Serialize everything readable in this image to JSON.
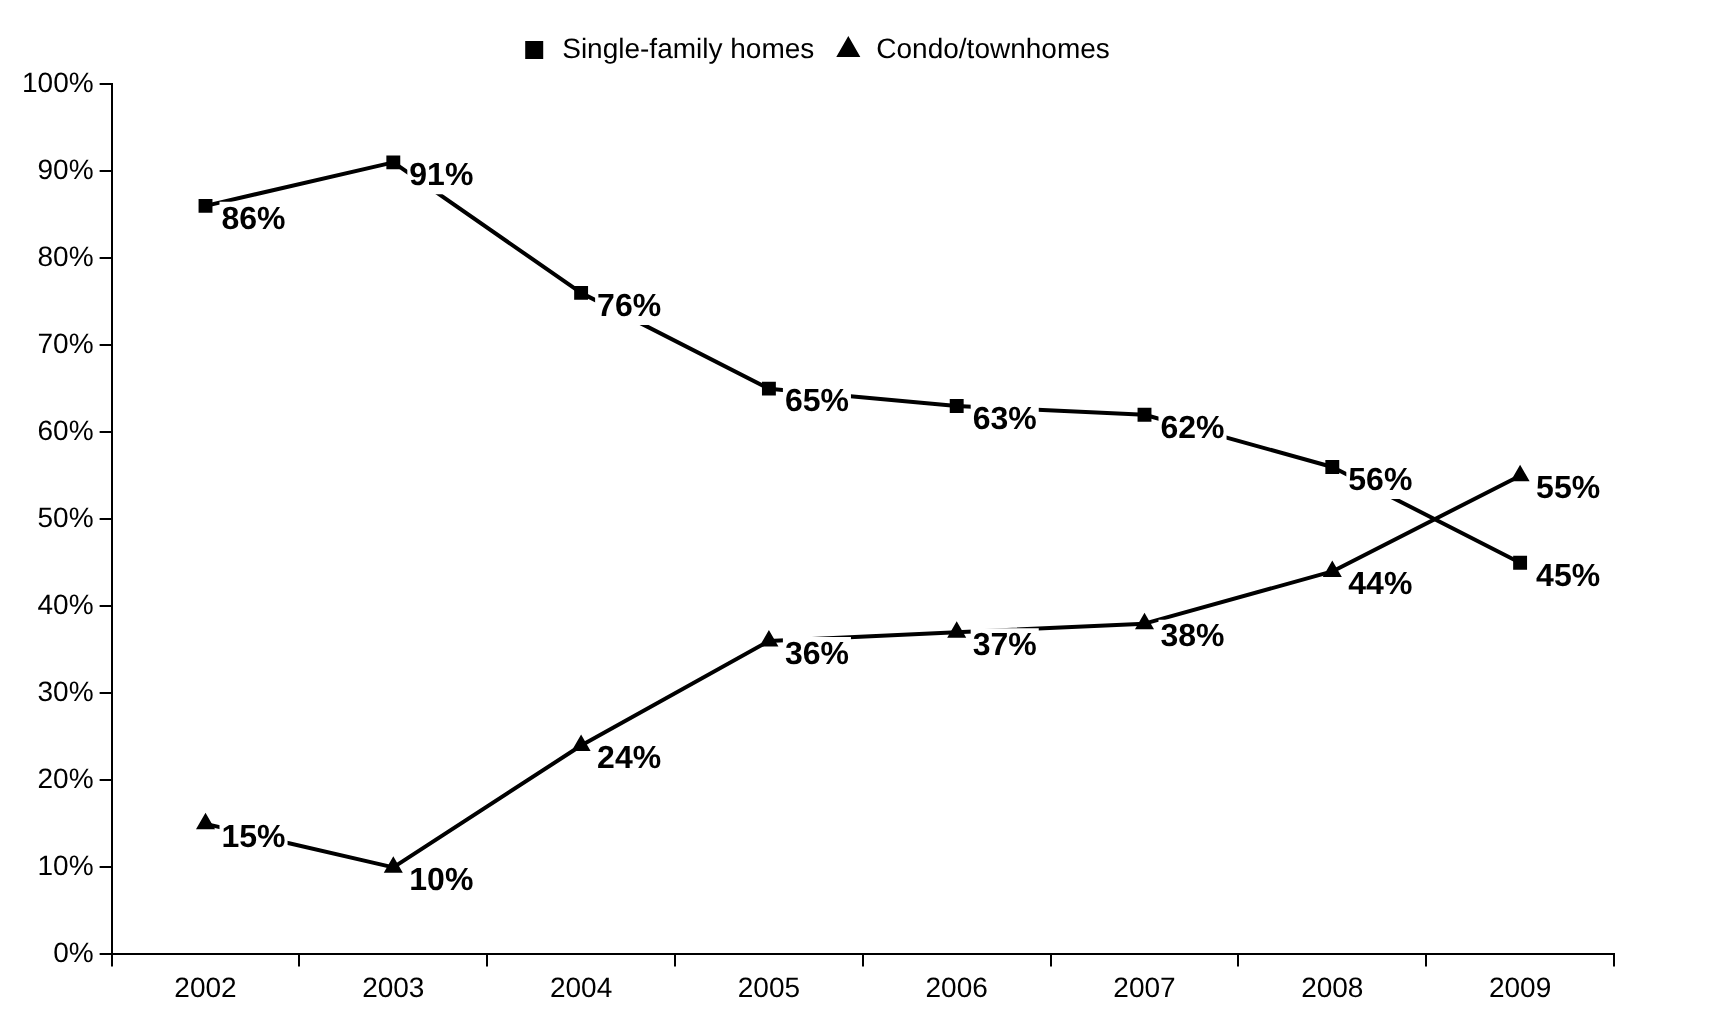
{
  "chart_data": {
    "type": "line",
    "categories": [
      "2002",
      "2003",
      "2004",
      "2005",
      "2006",
      "2007",
      "2008",
      "2009"
    ],
    "series": [
      {
        "name": "Single-family homes",
        "color": "#000000",
        "marker": "square",
        "values": [
          86,
          91,
          76,
          65,
          63,
          62,
          56,
          45
        ],
        "value_labels": [
          "86%",
          "91%",
          "76%",
          "65%",
          "63%",
          "62%",
          "56%",
          "45%"
        ]
      },
      {
        "name": "Condo/townhomes",
        "color": "#000000",
        "marker": "triangle",
        "values": [
          15,
          10,
          24,
          36,
          37,
          38,
          44,
          55
        ],
        "value_labels": [
          "15%",
          "10%",
          "24%",
          "36%",
          "37%",
          "38%",
          "44%",
          "55%"
        ]
      }
    ],
    "ylim": [
      0,
      100
    ],
    "yticks": [
      {
        "value": 0,
        "label": "0%"
      },
      {
        "value": 10,
        "label": "10%"
      },
      {
        "value": 20,
        "label": "20%"
      },
      {
        "value": 30,
        "label": "30%"
      },
      {
        "value": 40,
        "label": "40%"
      },
      {
        "value": 50,
        "label": "50%"
      },
      {
        "value": 60,
        "label": "60%"
      },
      {
        "value": 70,
        "label": "70%"
      },
      {
        "value": 80,
        "label": "80%"
      },
      {
        "value": 90,
        "label": "90%"
      },
      {
        "value": 100,
        "label": "100%"
      }
    ],
    "legend": "top",
    "grid": false,
    "line_style": "solid"
  }
}
